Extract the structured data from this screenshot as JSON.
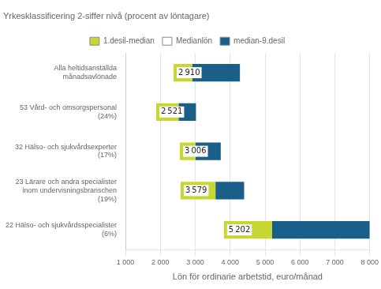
{
  "chart_data": {
    "type": "bar",
    "orientation": "horizontal",
    "title": "Yrkesklassificering 2-siffer nivå (procent av löntagare)",
    "xlabel": "Lön för ordinarie arbetstid, euro/månad",
    "categories": [
      "Alla heltidsanställda\nmånadsavlönade",
      "53 Vård- och omsorgspersonal\n(24%)",
      "32 Hälso- och sjukvårdsexperter\n(17%)",
      "23 Lärare och andra specialister\ninom undervisningsbranschen\n(19%)",
      "22 Hälso- och sjukvårdsspecialister\n(6%)"
    ],
    "series": [
      {
        "name": "1.desil-median",
        "color": "#c8d632",
        "values": [
          [
            2380,
            2910
          ],
          [
            1880,
            2521
          ],
          [
            2560,
            3006
          ],
          [
            2580,
            3579
          ],
          [
            3820,
            5202
          ]
        ]
      },
      {
        "name": "Medianlön",
        "color": "#ffffff",
        "values": [
          2910,
          2521,
          3006,
          3579,
          5202
        ],
        "value_labels": [
          "2 910",
          "2 521",
          "3 006",
          "3 579",
          "5 202"
        ]
      },
      {
        "name": "median-9.desil",
        "color": "#1a5e8a",
        "values": [
          [
            2910,
            4280
          ],
          [
            2521,
            3020
          ],
          [
            3006,
            3730
          ],
          [
            3579,
            4400
          ],
          [
            5202,
            8000
          ]
        ]
      }
    ],
    "xlim": [
      1000,
      8000
    ],
    "xticks": [
      {
        "value": 1000,
        "label": "1 000"
      },
      {
        "value": 2000,
        "label": "2 000"
      },
      {
        "value": 3000,
        "label": "3 000"
      },
      {
        "value": 4000,
        "label": "4 000"
      },
      {
        "value": 5000,
        "label": "5 000"
      },
      {
        "value": 6000,
        "label": "6 000"
      },
      {
        "value": 7000,
        "label": "7 000"
      },
      {
        "value": 8000,
        "label": "8 000"
      }
    ],
    "grid": true,
    "legend": "top",
    "data_labels": true
  }
}
